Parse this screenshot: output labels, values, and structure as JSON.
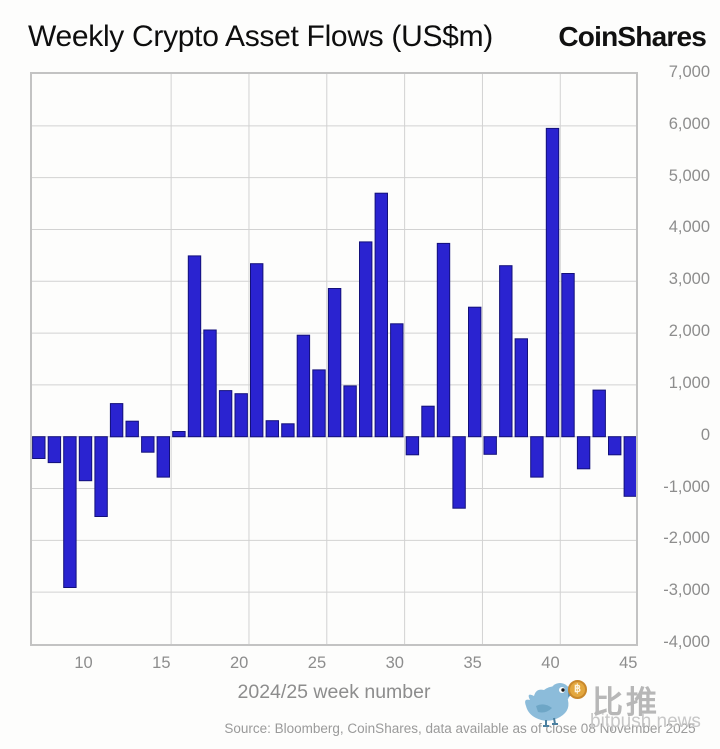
{
  "header": {
    "title": "Weekly Crypto Asset Flows (US$m)",
    "logo": "CoinShares"
  },
  "chart_data": {
    "type": "bar",
    "title": "Weekly Crypto Asset Flows (US$m)",
    "xlabel": "2024/25 week number",
    "ylabel": "",
    "x": [
      7,
      8,
      9,
      10,
      11,
      12,
      13,
      14,
      15,
      16,
      17,
      18,
      19,
      20,
      21,
      22,
      23,
      24,
      25,
      26,
      27,
      28,
      29,
      30,
      31,
      32,
      33,
      34,
      35,
      36,
      37,
      38,
      39,
      40,
      41,
      42,
      43,
      44,
      45
    ],
    "values": [
      -420,
      -500,
      -2910,
      -850,
      -1540,
      640,
      300,
      -300,
      -780,
      100,
      3490,
      2060,
      890,
      830,
      3340,
      310,
      250,
      1960,
      1290,
      2860,
      980,
      3760,
      4700,
      2180,
      -350,
      590,
      3730,
      -1380,
      2500,
      -340,
      3300,
      1890,
      -780,
      5950,
      3150,
      -620,
      900,
      -350,
      -1150
    ],
    "ylim": [
      -4000,
      7000
    ],
    "ytick_step": 1000,
    "xticks": [
      10,
      15,
      20,
      25,
      30,
      35,
      40,
      45
    ],
    "grid": true,
    "legend": "none",
    "bar_color": "#2a23d0",
    "bar_edge_color": "#13107a",
    "grid_color": "#d2d2d2"
  },
  "axis": {
    "x_title": "2024/25 week number"
  },
  "footer": {
    "source": "Source: Bloomberg, CoinShares, data available as of close 08 November 2025"
  },
  "watermark": {
    "bird_icon": "bird-with-bitcoin-icon",
    "coin_symbol": "฿",
    "cn_text": "比推",
    "site_text": "bitpush.news"
  }
}
